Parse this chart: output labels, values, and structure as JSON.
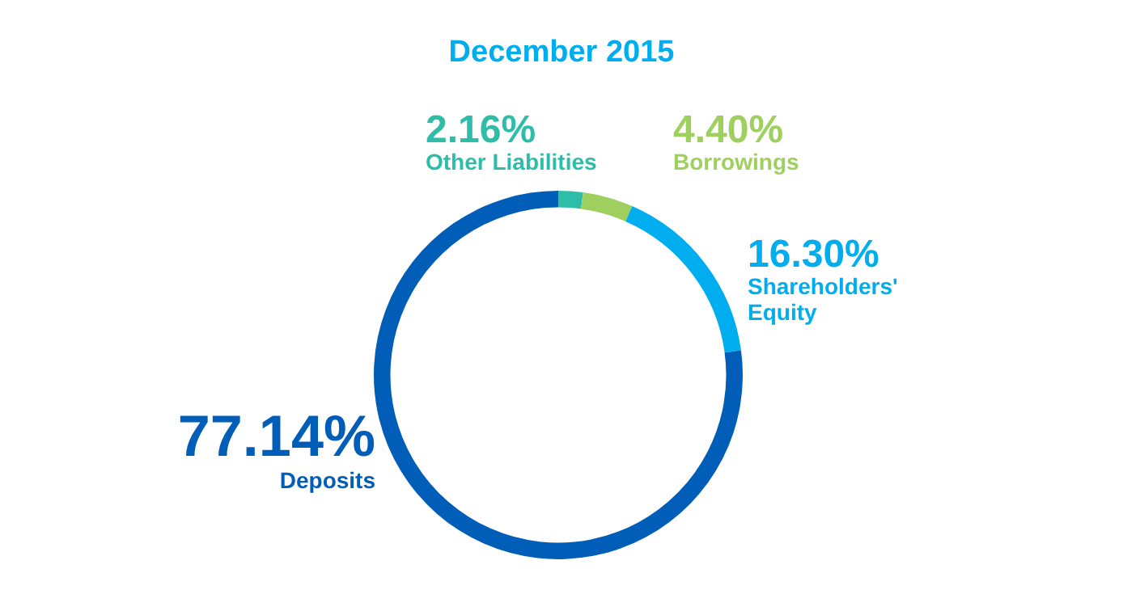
{
  "chart_data": {
    "type": "donut",
    "title": "December 2015",
    "categories": [
      "Other Liabilities",
      "Borrowings",
      "Shareholders' Equity",
      "Deposits"
    ],
    "values": [
      2.16,
      4.4,
      16.3,
      77.14
    ],
    "value_labels": [
      "2.16%",
      "4.40%",
      "16.30%",
      "77.14%"
    ],
    "colors": [
      "#2dbda8",
      "#9fd05f",
      "#00aeef",
      "#005eb8"
    ],
    "legend": false
  }
}
